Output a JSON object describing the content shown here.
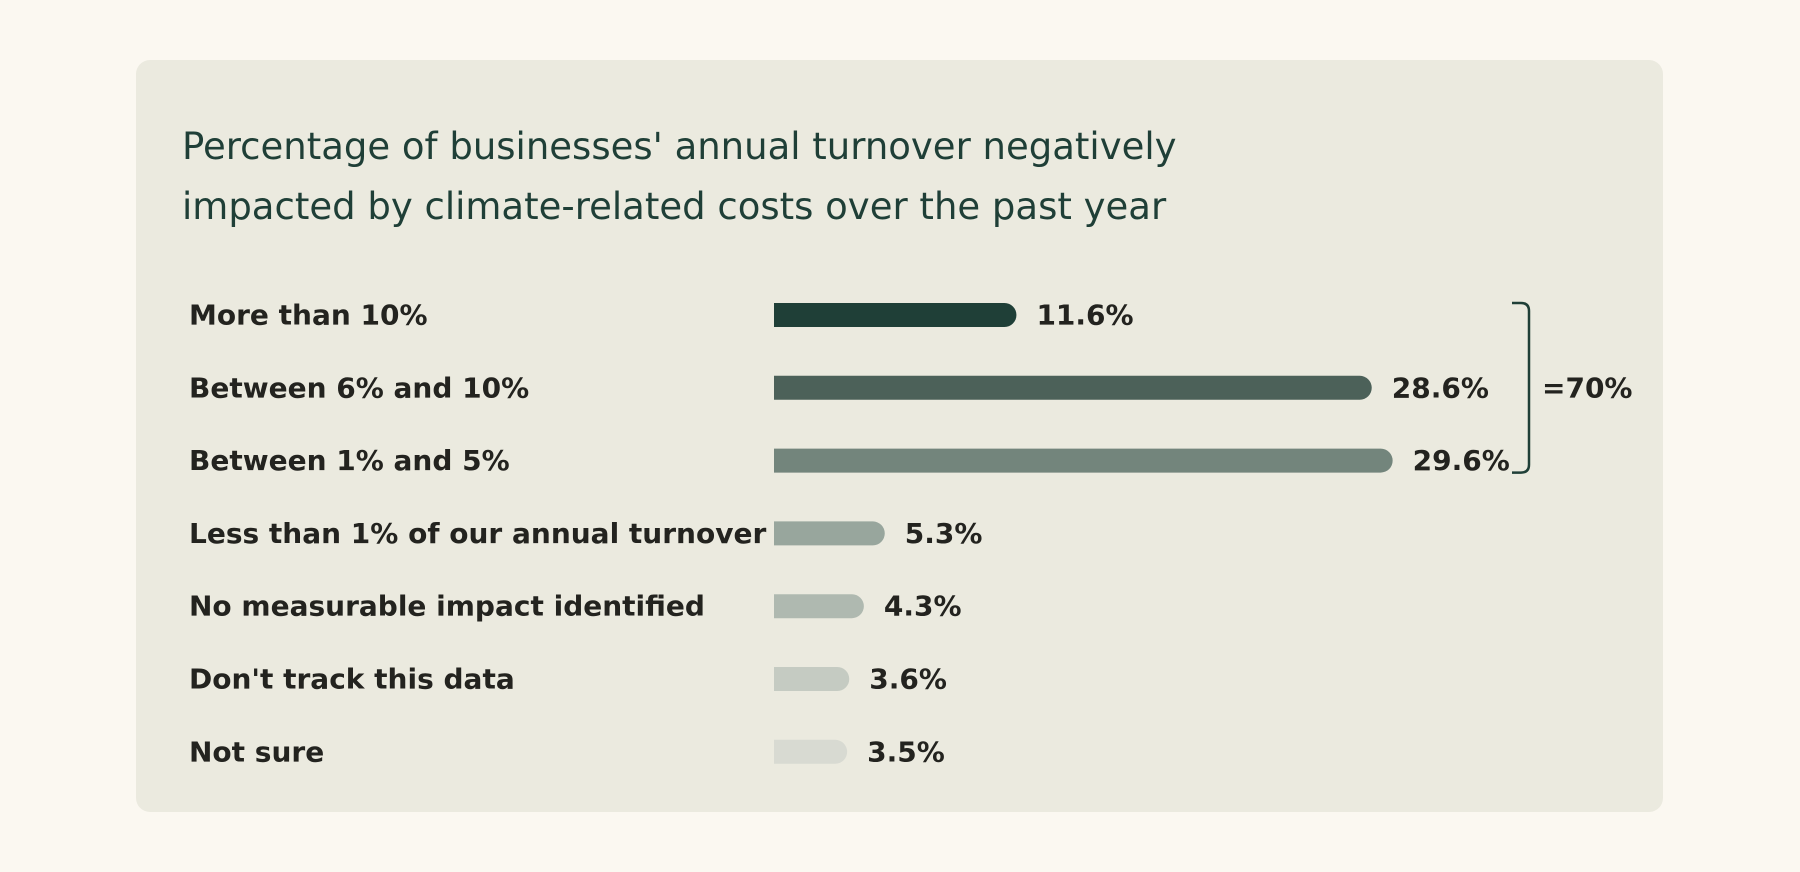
{
  "chart_data": {
    "type": "bar",
    "orientation": "horizontal",
    "title": "Percentage of businesses' annual turnover negatively impacted by climate-related costs over the past year",
    "title_lines": [
      "Percentage of businesses' annual turnover negatively",
      "impacted by climate-related costs over the past year"
    ],
    "categories": [
      "More than 10%",
      "Between 6% and 10%",
      "Between 1% and 5%",
      "Less than 1% of our annual turnover",
      "No measurable impact identified",
      "Don't track this data",
      "Not sure"
    ],
    "values": [
      11.6,
      28.6,
      29.6,
      5.3,
      4.3,
      3.6,
      3.5
    ],
    "value_labels": [
      "11.6%",
      "28.6%",
      "29.6%",
      "5.3%",
      "4.3%",
      "3.6%",
      "3.5%"
    ],
    "colors": [
      "#1f3f37",
      "#4c6159",
      "#73857c",
      "#98a69d",
      "#afb9b0",
      "#c5cbc2",
      "#d8dad2"
    ],
    "grid": false,
    "legend": "none",
    "annotation": {
      "type": "bracket",
      "spans_categories": [
        0,
        2
      ],
      "label": "=70%"
    }
  }
}
